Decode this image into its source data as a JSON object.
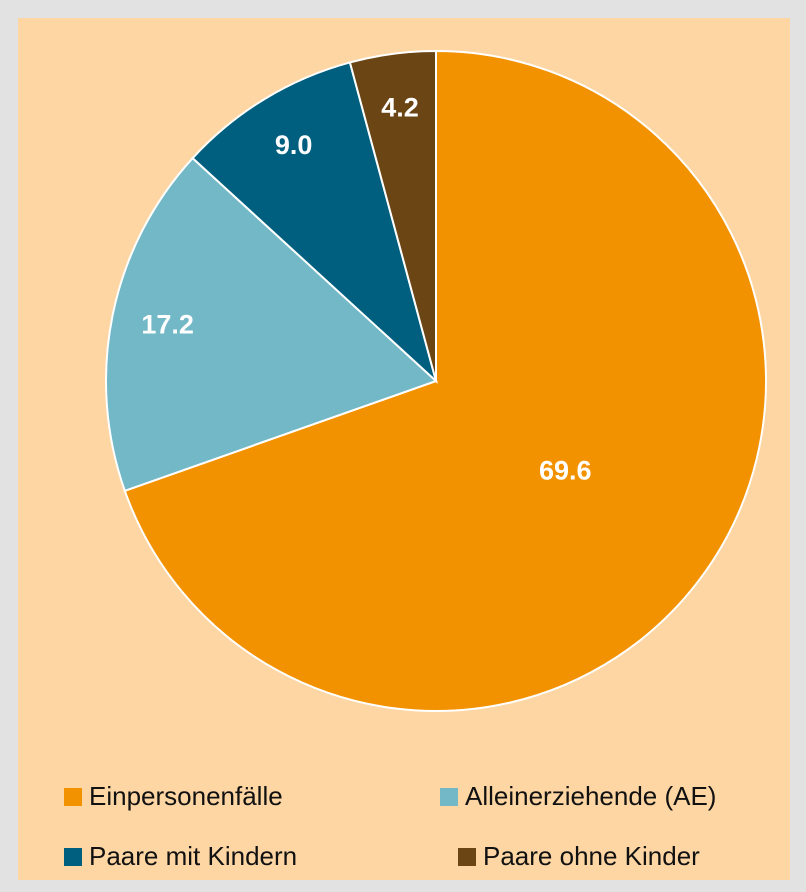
{
  "chart_data": {
    "type": "pie",
    "categories": [
      "Einpersonenfälle",
      "Alleinerziehende (AE)",
      "Paare mit Kindern",
      "Paare ohne Kinder"
    ],
    "values": [
      69.6,
      17.2,
      9.0,
      4.2
    ],
    "value_labels": [
      "69.6",
      "17.2",
      "9.0",
      "4.2"
    ],
    "colors": [
      "#f39200",
      "#72b8c6",
      "#005f7f",
      "#6b4514"
    ],
    "legend": "bottom"
  }
}
